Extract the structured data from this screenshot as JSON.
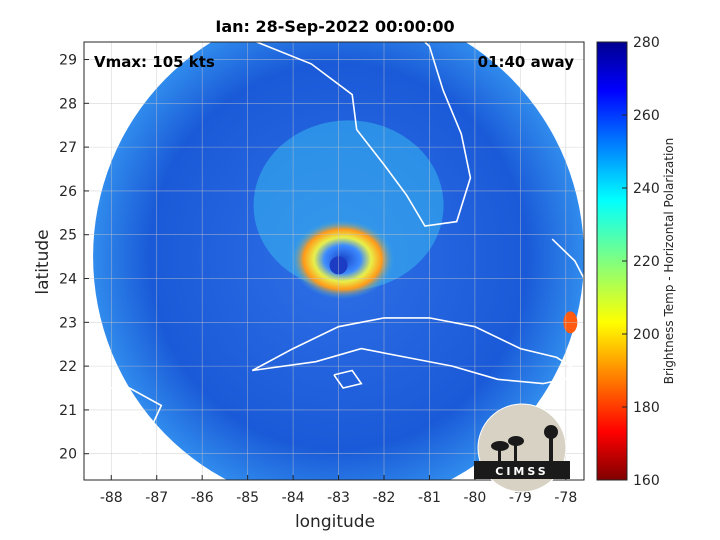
{
  "chart_data": {
    "type": "heatmap",
    "title": "Ian: 28-Sep-2022 00:00:00",
    "xlabel": "longitude",
    "ylabel": "latitude",
    "xlim": [
      -88.6,
      -77.6
    ],
    "ylim": [
      19.4,
      29.4
    ],
    "x_ticks": [
      -88,
      -87,
      -86,
      -85,
      -84,
      -83,
      -82,
      -81,
      -80,
      -79,
      -78
    ],
    "y_ticks": [
      20,
      21,
      22,
      23,
      24,
      25,
      26,
      27,
      28,
      29
    ],
    "grid": true,
    "annotations": {
      "vmax": "Vmax: 105 kts",
      "time_away": "01:40 away"
    },
    "storm_center": {
      "lon": -83.0,
      "lat": 24.3
    },
    "colorbar": {
      "label": "Brightness Temp - Horizontal Polarization",
      "range": [
        160,
        280
      ],
      "ticks": [
        160,
        180,
        200,
        220,
        240,
        260,
        280
      ],
      "colormap": "jet"
    },
    "swath": {
      "center_lon": -83.0,
      "center_lat": 24.5,
      "radius_deg": 5.4
    }
  },
  "logo": {
    "text": "CIMSS",
    "name": "cimss-logo"
  }
}
